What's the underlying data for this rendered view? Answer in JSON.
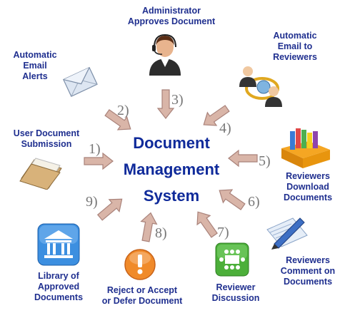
{
  "center": {
    "line1": "Document",
    "line2": "Management",
    "line3": "System"
  },
  "nodes": {
    "admin": {
      "line1": "Administrator",
      "line2": "Approves Document",
      "icon": "person-headset-icon"
    },
    "email_rev": {
      "line1": "Automatic",
      "line2": "Email to",
      "line3": "Reviewers",
      "icon": "people-email-icon"
    },
    "email_alert": {
      "line1": "Automatic",
      "line2": "Email",
      "line3": "Alerts",
      "icon": "envelope-icon"
    },
    "user_sub": {
      "line1": "User Document",
      "line2": "Submission",
      "icon": "folder-icon"
    },
    "download": {
      "line1": "Reviewers",
      "line2": "Download",
      "line3": "Documents",
      "icon": "books-icon"
    },
    "comment": {
      "line1": "Reviewers",
      "line2": "Comment on",
      "line3": "Documents",
      "icon": "pen-paper-icon"
    },
    "discussion": {
      "line1": "Reviewer",
      "line2": "Discussion",
      "icon": "meeting-table-icon"
    },
    "reject": {
      "line1": "Reject or Accept",
      "line2": "or Defer Document",
      "icon": "exclamation-icon"
    },
    "library": {
      "line1": "Library of",
      "line2": "Approved",
      "line3": "Documents",
      "icon": "library-icon"
    }
  },
  "steps": [
    "1)",
    "2)",
    "3)",
    "4)",
    "5)",
    "6)",
    "7)",
    "8)",
    "9)"
  ],
  "colors": {
    "label": "#1f2f8f",
    "center": "#0f2a9a",
    "arrow_fill": "#d9b5a8",
    "arrow_stroke": "#a9827a",
    "step": "#777777"
  }
}
